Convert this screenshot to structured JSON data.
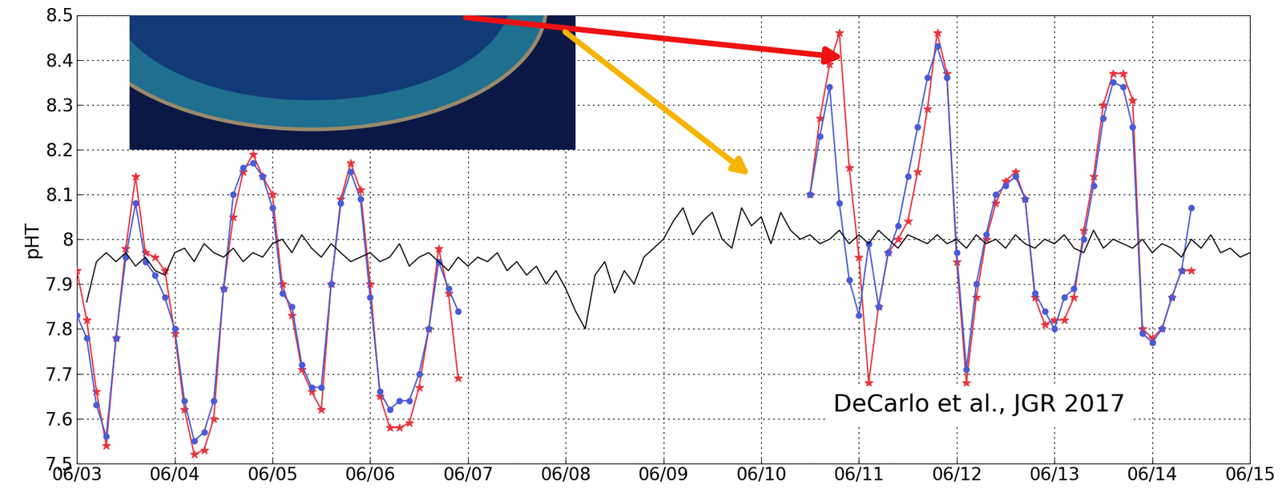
{
  "chart_data": {
    "type": "line",
    "y_label": "pHT",
    "annotation": "DeCarlo et al., JGR 2017",
    "xlim": [
      3,
      15
    ],
    "xticks": [
      {
        "value": 3,
        "label": "06/03"
      },
      {
        "value": 4,
        "label": "06/04"
      },
      {
        "value": 5,
        "label": "06/05"
      },
      {
        "value": 6,
        "label": "06/06"
      },
      {
        "value": 7,
        "label": "06/07"
      },
      {
        "value": 8,
        "label": "06/08"
      },
      {
        "value": 9,
        "label": "06/09"
      },
      {
        "value": 10,
        "label": "06/10"
      },
      {
        "value": 11,
        "label": "06/11"
      },
      {
        "value": 12,
        "label": "06/12"
      },
      {
        "value": 13,
        "label": "06/13"
      },
      {
        "value": 14,
        "label": "06/14"
      },
      {
        "value": 15,
        "label": "06/15"
      }
    ],
    "ylim": [
      7.5,
      8.5
    ],
    "yticks": [
      7.5,
      7.6,
      7.7,
      7.8,
      7.9,
      8,
      8.1,
      8.2,
      8.3,
      8.4,
      8.5
    ],
    "grid": true,
    "series": [
      {
        "color": "#e8333a",
        "marker": "star",
        "line_style": "solid",
        "x": [
          3.0,
          3.1,
          3.2,
          3.3,
          3.4,
          3.5,
          3.6,
          3.7,
          3.8,
          3.9,
          4.0,
          4.1,
          4.2,
          4.3,
          4.4,
          4.5,
          4.6,
          4.7,
          4.8,
          4.9,
          5.0,
          5.1,
          5.2,
          5.3,
          5.4,
          5.5,
          5.6,
          5.7,
          5.8,
          5.9,
          6.0,
          6.1,
          6.2,
          6.3,
          6.4,
          6.5,
          6.6,
          6.7,
          6.8,
          6.9,
          8.7,
          10.5,
          10.6,
          10.7,
          10.8,
          10.9,
          11.0,
          11.1,
          11.2,
          11.3,
          11.4,
          11.5,
          11.6,
          11.7,
          11.8,
          11.9,
          12.0,
          12.1,
          12.2,
          12.3,
          12.4,
          12.5,
          12.6,
          12.7,
          12.8,
          12.9,
          13.0,
          13.1,
          13.2,
          13.3,
          13.4,
          13.5,
          13.6,
          13.7,
          13.8,
          13.9,
          14.0,
          14.1,
          14.2,
          14.3,
          14.4
        ],
        "values": [
          7.93,
          7.82,
          7.66,
          7.54,
          7.78,
          7.98,
          8.14,
          7.97,
          7.96,
          7.93,
          7.79,
          7.62,
          7.52,
          7.53,
          7.6,
          7.89,
          8.05,
          8.15,
          8.19,
          8.14,
          8.1,
          7.9,
          7.83,
          7.71,
          7.66,
          7.62,
          7.9,
          8.09,
          8.17,
          8.11,
          7.9,
          7.65,
          7.58,
          7.58,
          7.59,
          7.67,
          7.8,
          7.98,
          7.88,
          7.69,
          null,
          8.1,
          8.27,
          8.39,
          8.46,
          8.16,
          7.96,
          7.68,
          7.85,
          7.97,
          8.0,
          8.04,
          8.15,
          8.29,
          8.46,
          8.37,
          7.95,
          7.68,
          7.87,
          8.0,
          8.08,
          8.13,
          8.15,
          8.09,
          7.87,
          7.81,
          7.82,
          7.82,
          7.87,
          8.02,
          8.14,
          8.3,
          8.37,
          8.37,
          8.31,
          7.8,
          7.78,
          7.8,
          7.87,
          7.93,
          7.93
        ]
      },
      {
        "color": "#4a5bd6",
        "marker": "circle",
        "line_style": "solid",
        "x": [
          3.0,
          3.1,
          3.2,
          3.3,
          3.4,
          3.5,
          3.6,
          3.7,
          3.8,
          3.9,
          4.0,
          4.1,
          4.2,
          4.3,
          4.4,
          4.5,
          4.6,
          4.7,
          4.8,
          4.9,
          5.0,
          5.1,
          5.2,
          5.3,
          5.4,
          5.5,
          5.6,
          5.7,
          5.8,
          5.9,
          6.0,
          6.1,
          6.2,
          6.3,
          6.4,
          6.5,
          6.6,
          6.7,
          6.8,
          6.9,
          8.7,
          10.5,
          10.6,
          10.7,
          10.8,
          10.9,
          11.0,
          11.1,
          11.2,
          11.3,
          11.4,
          11.5,
          11.6,
          11.7,
          11.8,
          11.9,
          12.0,
          12.1,
          12.2,
          12.3,
          12.4,
          12.5,
          12.6,
          12.7,
          12.8,
          12.9,
          13.0,
          13.1,
          13.2,
          13.3,
          13.4,
          13.5,
          13.6,
          13.7,
          13.8,
          13.9,
          14.0,
          14.1,
          14.2,
          14.3,
          14.4
        ],
        "values": [
          7.83,
          7.78,
          7.63,
          7.56,
          7.78,
          7.96,
          8.08,
          7.95,
          7.92,
          7.87,
          7.8,
          7.64,
          7.55,
          7.57,
          7.64,
          7.89,
          8.1,
          8.16,
          8.17,
          8.14,
          8.07,
          7.88,
          7.85,
          7.72,
          7.67,
          7.67,
          7.9,
          8.08,
          8.15,
          8.09,
          7.87,
          7.66,
          7.62,
          7.64,
          7.64,
          7.7,
          7.8,
          7.95,
          7.89,
          7.84,
          null,
          8.1,
          8.23,
          8.34,
          8.08,
          7.91,
          7.83,
          7.99,
          7.85,
          7.97,
          8.03,
          8.14,
          8.25,
          8.36,
          8.43,
          8.36,
          7.97,
          7.71,
          7.9,
          8.01,
          8.1,
          8.12,
          8.14,
          8.09,
          7.88,
          7.84,
          7.8,
          7.87,
          7.89,
          8.0,
          8.12,
          8.27,
          8.35,
          8.34,
          8.25,
          7.79,
          7.77,
          7.8,
          7.87,
          7.93,
          8.07
        ]
      },
      {
        "color": "#000000",
        "marker": "none",
        "line_style": "solid",
        "x": [
          3.1,
          3.2,
          3.3,
          3.4,
          3.5,
          3.6,
          3.7,
          3.8,
          3.9,
          4.0,
          4.1,
          4.2,
          4.3,
          4.4,
          4.5,
          4.6,
          4.7,
          4.8,
          4.9,
          5.0,
          5.1,
          5.2,
          5.3,
          5.4,
          5.5,
          5.6,
          5.7,
          5.8,
          5.9,
          6.0,
          6.1,
          6.2,
          6.3,
          6.4,
          6.5,
          6.6,
          6.7,
          6.8,
          6.9,
          7.0,
          7.1,
          7.2,
          7.3,
          7.4,
          7.5,
          7.6,
          7.7,
          7.8,
          7.9,
          8.0,
          8.1,
          8.2,
          8.3,
          8.4,
          8.5,
          8.6,
          8.7,
          8.8,
          8.9,
          9.0,
          9.1,
          9.2,
          9.3,
          9.4,
          9.5,
          9.6,
          9.7,
          9.8,
          9.9,
          10.0,
          10.1,
          10.2,
          10.3,
          10.4,
          10.5,
          10.6,
          10.7,
          10.8,
          10.9,
          11.0,
          11.1,
          11.2,
          11.3,
          11.4,
          11.5,
          11.6,
          11.7,
          11.8,
          11.9,
          12.0,
          12.1,
          12.2,
          12.3,
          12.4,
          12.5,
          12.6,
          12.7,
          12.8,
          12.9,
          13.0,
          13.1,
          13.2,
          13.3,
          13.4,
          13.5,
          13.6,
          13.7,
          13.8,
          13.9,
          14.0,
          14.1,
          14.2,
          14.3,
          14.4,
          14.5,
          14.6,
          14.7,
          14.8,
          14.9,
          15.0
        ],
        "values": [
          7.86,
          7.95,
          7.97,
          7.95,
          7.97,
          7.94,
          7.96,
          7.93,
          7.92,
          7.97,
          7.98,
          7.95,
          7.99,
          7.97,
          7.96,
          7.98,
          7.95,
          7.97,
          7.96,
          7.99,
          8.0,
          7.97,
          8.01,
          7.98,
          7.96,
          7.99,
          7.97,
          7.95,
          7.96,
          7.97,
          7.95,
          7.96,
          7.99,
          7.94,
          7.96,
          7.97,
          7.95,
          7.93,
          7.96,
          7.94,
          7.96,
          7.95,
          7.97,
          7.93,
          7.95,
          7.92,
          7.94,
          7.9,
          7.93,
          7.89,
          7.84,
          7.8,
          7.92,
          7.95,
          7.88,
          7.93,
          7.9,
          7.96,
          7.98,
          8.0,
          8.04,
          8.07,
          8.01,
          8.04,
          8.06,
          8.0,
          7.98,
          8.07,
          8.03,
          8.05,
          7.99,
          8.06,
          8.02,
          8.0,
          8.01,
          7.99,
          8.0,
          8.02,
          7.99,
          8.01,
          7.99,
          8.02,
          8.0,
          7.98,
          8.01,
          8.0,
          7.99,
          8.01,
          7.99,
          8.0,
          7.98,
          8.01,
          7.99,
          8.0,
          7.98,
          8.01,
          7.99,
          7.98,
          8.0,
          7.99,
          8.01,
          7.98,
          7.97,
          8.02,
          7.98,
          8.0,
          7.99,
          7.98,
          8.0,
          7.97,
          7.99,
          7.98,
          7.96,
          8.0,
          7.98,
          8.01,
          7.97,
          7.98,
          7.96,
          7.97
        ]
      }
    ]
  }
}
